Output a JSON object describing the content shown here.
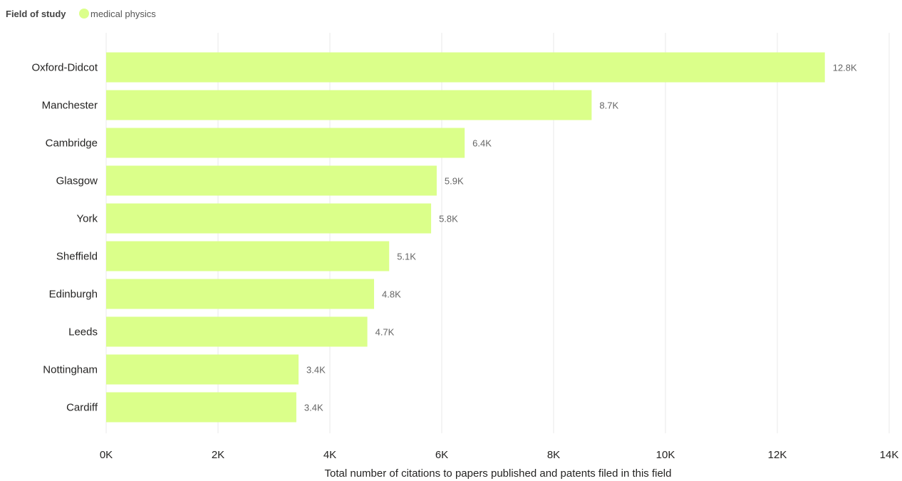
{
  "legend": {
    "title": "Field of study",
    "items": [
      {
        "label": "medical physics",
        "color": "#dbff8a"
      }
    ]
  },
  "chart_data": {
    "type": "bar",
    "orientation": "horizontal",
    "categories": [
      "Oxford-Didcot",
      "Manchester",
      "Cambridge",
      "Glasgow",
      "York",
      "Sheffield",
      "Edinburgh",
      "Leeds",
      "Nottingham",
      "Cardiff"
    ],
    "series": [
      {
        "name": "medical physics",
        "color": "#dbff8a",
        "values": [
          12850,
          8680,
          6410,
          5910,
          5810,
          5060,
          4790,
          4670,
          3440,
          3400
        ]
      }
    ],
    "data_labels": [
      "12.8K",
      "8.7K",
      "6.4K",
      "5.9K",
      "5.8K",
      "5.1K",
      "4.8K",
      "4.7K",
      "3.4K",
      "3.4K"
    ],
    "xlim": [
      0,
      14000
    ],
    "xticks": [
      0,
      2000,
      4000,
      6000,
      8000,
      10000,
      12000,
      14000
    ],
    "xtick_labels": [
      "0K",
      "2K",
      "4K",
      "6K",
      "8K",
      "10K",
      "12K",
      "14K"
    ],
    "xlabel": "Total number of citations to papers published and patents filed in this field",
    "ylabel": "",
    "grid": true,
    "legend_position": "top-left"
  }
}
